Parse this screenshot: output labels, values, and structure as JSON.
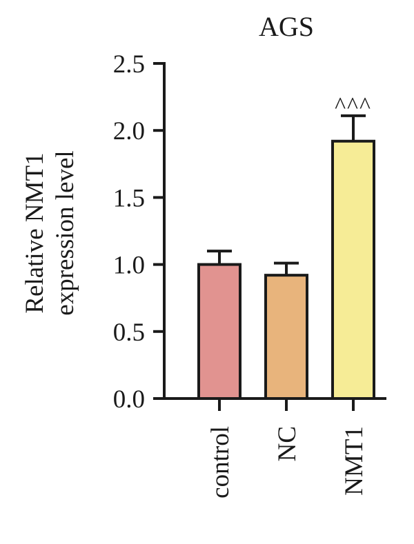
{
  "chart_data": {
    "type": "bar",
    "title": "AGS",
    "ylabel_lines": [
      "Relative NMT1",
      "expression level"
    ],
    "xlabel": "",
    "categories": [
      "control",
      "NC",
      "NMT1"
    ],
    "values": [
      1.0,
      0.92,
      1.92
    ],
    "error_upper": [
      0.1,
      0.09,
      0.19
    ],
    "bar_colors": [
      "#e19390",
      "#e8b47c",
      "#f6ec96"
    ],
    "annotations": [
      "",
      "",
      "^^^"
    ],
    "ylim": [
      0,
      2.5
    ],
    "yticks": [
      "0.0",
      "0.5",
      "1.0",
      "1.5",
      "2.0",
      "2.5"
    ],
    "ytick_values": [
      0,
      0.5,
      1.0,
      1.5,
      2.0,
      2.5
    ],
    "grid": false,
    "legend": "none"
  }
}
